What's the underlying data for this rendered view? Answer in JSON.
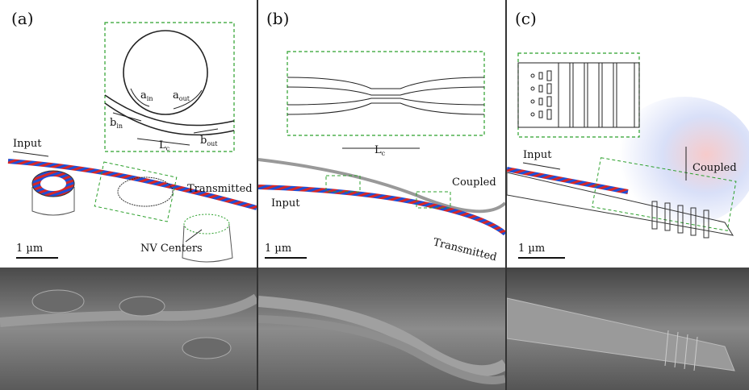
{
  "panels": {
    "a": {
      "label": "(a)",
      "input": "Input",
      "transmitted": "Transmitted",
      "nv_centers": "NV Centers",
      "scale_bar": "1 µm",
      "inset": {
        "a_in": "a",
        "a_in_sub": "in",
        "a_out": "a",
        "a_out_sub": "out",
        "b_in": "b",
        "b_in_sub": "in",
        "b_out": "b",
        "b_out_sub": "out",
        "lc": "L",
        "lc_sub": "c"
      }
    },
    "b": {
      "label": "(b)",
      "input": "Input",
      "coupled": "Coupled",
      "transmitted": "Transmitted",
      "scale_bar": "1 µm",
      "inset": {
        "lc": "L",
        "lc_sub": "c"
      }
    },
    "c": {
      "label": "(c)",
      "input": "Input",
      "coupled": "Coupled",
      "scale_bar": "1 µm"
    }
  },
  "colors": {
    "inset_border": "#2ca02c",
    "field_red": "#d62728",
    "field_blue": "#1f4fd6",
    "sem_gray": "#7a7a7a"
  }
}
